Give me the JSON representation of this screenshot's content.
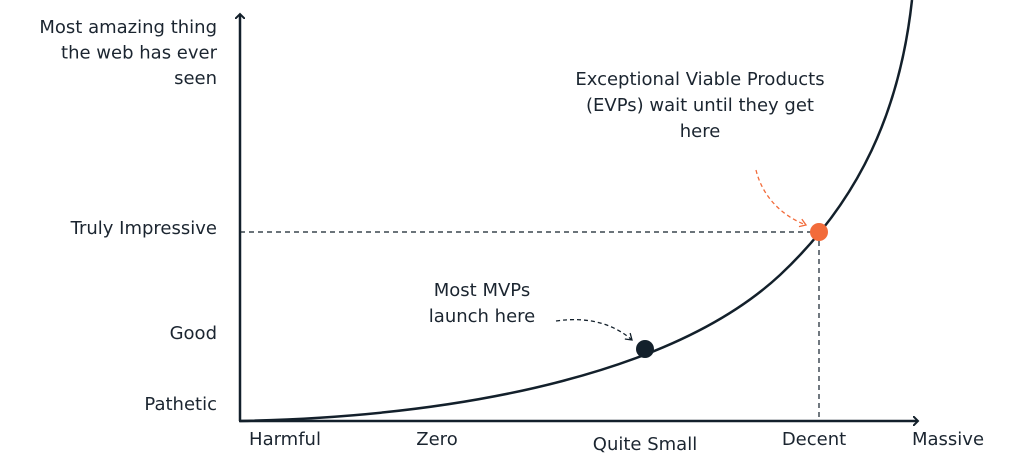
{
  "y_axis": {
    "labels": [
      {
        "lines": [
          "Most amazing thing",
          "the web has ever",
          "seen"
        ]
      },
      {
        "lines": [
          "Truly Impressive"
        ]
      },
      {
        "lines": [
          "Good"
        ]
      },
      {
        "lines": [
          "Pathetic"
        ]
      }
    ]
  },
  "x_axis": {
    "labels": [
      "Harmful",
      "Zero",
      "Quite Small",
      "Decent",
      "Massive"
    ]
  },
  "annotations": [
    {
      "lines": [
        "Exceptional Viable Products",
        "(EVPs) wait until they get",
        "here"
      ]
    },
    {
      "lines": [
        "Most MVPs",
        "launch here"
      ]
    }
  ]
}
